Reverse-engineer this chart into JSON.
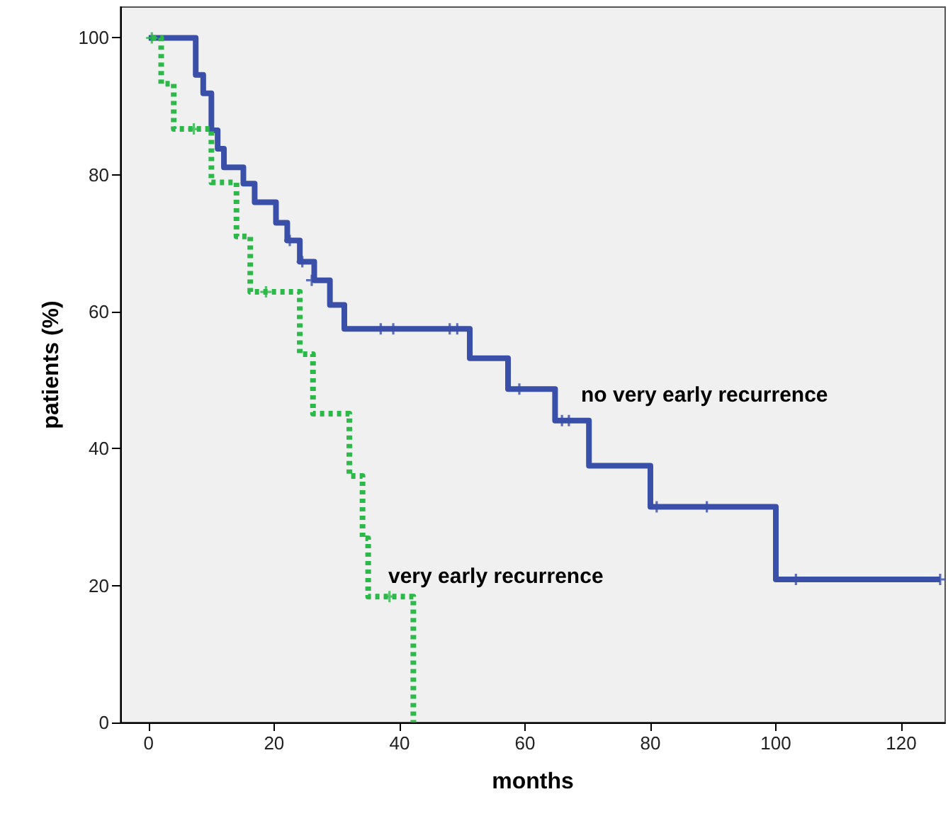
{
  "chart_data": {
    "type": "step",
    "xlabel": "months",
    "ylabel": "patients (%)",
    "xlim": [
      -4.5,
      127
    ],
    "ylim": [
      0,
      104.5
    ],
    "xticks": [
      0,
      20,
      40,
      60,
      80,
      100,
      120
    ],
    "yticks": [
      0,
      20,
      40,
      60,
      80,
      100
    ],
    "grid": false,
    "marker": "none",
    "series": [
      {
        "color": "#3a4fa8",
        "line_style": "solid",
        "x": [
          0,
          7.5,
          8.7,
          10,
          11,
          12,
          15.1,
          16.9,
          20.3,
          22.1,
          24.1,
          26.4,
          28.9,
          31.2,
          51.2,
          57.3,
          64.8,
          70.2,
          80,
          100,
          126.2
        ],
        "values": [
          100,
          94.6,
          91.9,
          86.5,
          83.8,
          81.1,
          78.7,
          76,
          73,
          70.4,
          67.3,
          64.6,
          61,
          57.5,
          53.2,
          48.7,
          44.1,
          37.5,
          31.5,
          20.9,
          20.9
        ]
      },
      {
        "color": "#2db84a",
        "line_style": "dotted",
        "x": [
          0.5,
          2,
          4,
          10,
          14,
          16.2,
          24.1,
          26.2,
          32,
          34.1,
          35,
          42.2
        ],
        "values": [
          100,
          93.3,
          86.7,
          78.9,
          71,
          62.9,
          53.8,
          45.1,
          36,
          26.9,
          18.4,
          0
        ]
      },
      {
        "type": "scatter",
        "marker": "cross",
        "color": "#3a4fa8",
        "x": [
          22.5,
          24.5,
          26,
          37,
          39,
          48,
          49.2,
          59.1,
          65.9,
          67,
          81,
          89,
          103.2,
          126.2
        ],
        "values": [
          70.4,
          67.3,
          64.6,
          57.5,
          57.5,
          57.5,
          57.5,
          48.7,
          44.1,
          44.1,
          31.5,
          31.5,
          20.9,
          20.9
        ]
      },
      {
        "type": "scatter",
        "marker": "cross",
        "color": "#2db84a",
        "x": [
          0.5,
          7.2,
          18.7,
          38.4
        ],
        "values": [
          100,
          86.7,
          62.9,
          18.4
        ]
      }
    ],
    "annotations": [
      "no very early recurrence",
      "very early recurrence"
    ]
  }
}
